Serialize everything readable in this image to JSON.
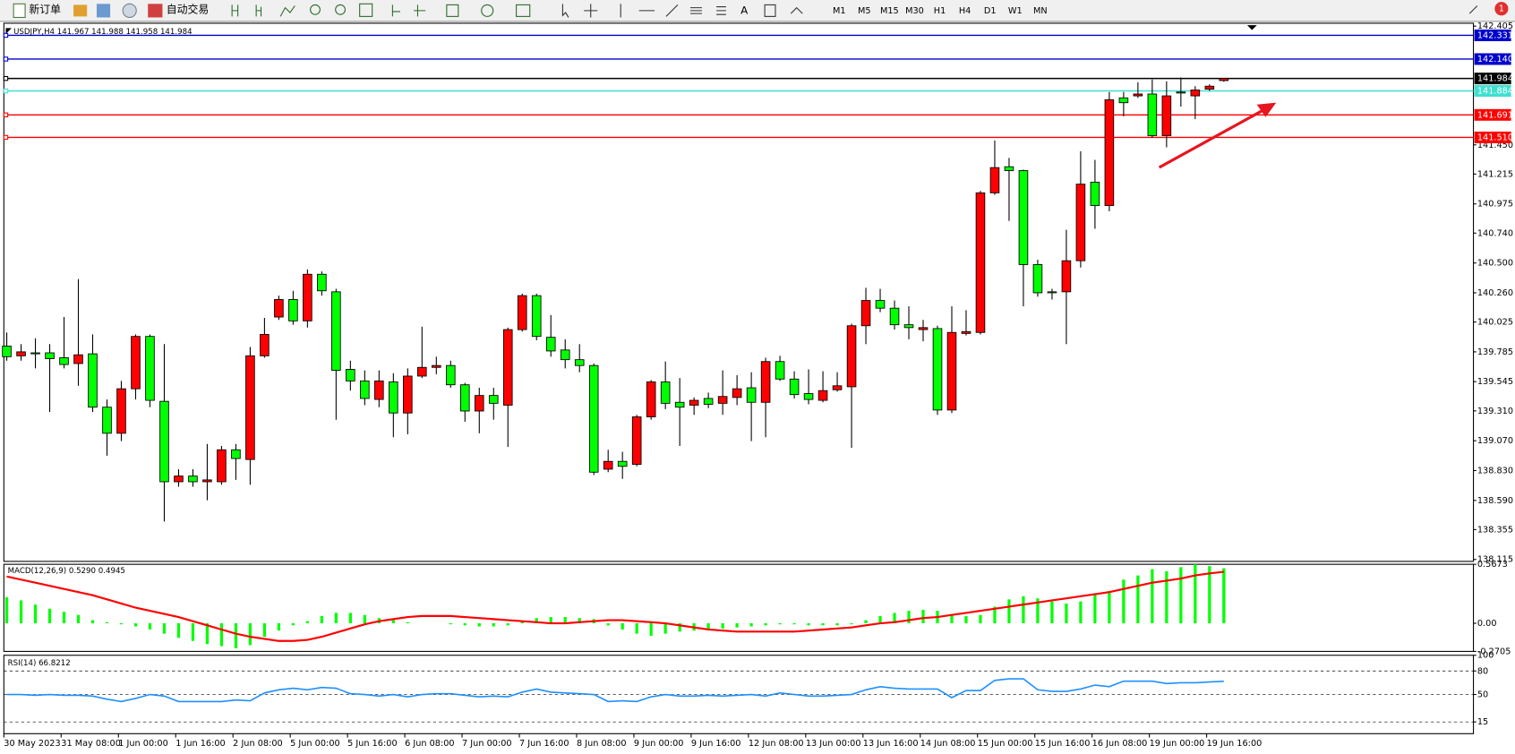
{
  "toolbar": {
    "new_order": "新订单",
    "auto_trading": "自动交易",
    "timeframes": [
      "M1",
      "M5",
      "M15",
      "M30",
      "H1",
      "H4",
      "D1",
      "W1",
      "MN"
    ],
    "notification_count": 1
  },
  "chart_data": [
    {
      "type": "candlestick",
      "header": "USDJPY,H4  141.967 141.988 141.958 141.984",
      "up_color": "#ff0000",
      "down_color": "#00ff00",
      "categories": [
        "30 May 2023",
        null,
        null,
        null,
        "31 May 08:00",
        null,
        null,
        null,
        "1 Jun 00:00",
        null,
        null,
        null,
        "1 Jun 16:00",
        null,
        null,
        null,
        "2 Jun 08:00",
        null,
        null,
        null,
        "5 Jun 00:00",
        null,
        null,
        null,
        "5 Jun 16:00",
        null,
        null,
        null,
        "6 Jun 08:00",
        null,
        null,
        null,
        "7 Jun 00:00",
        null,
        null,
        null,
        "7 Jun 16:00",
        null,
        null,
        null,
        "8 Jun 08:00",
        null,
        null,
        null,
        "9 Jun 00:00",
        null,
        null,
        null,
        "9 Jun 16:00",
        null,
        null,
        null,
        "12 Jun 08:00",
        null,
        null,
        null,
        "13 Jun 00:00",
        null,
        null,
        null,
        "13 Jun 16:00",
        null,
        null,
        null,
        "14 Jun 08:00",
        null,
        null,
        null,
        "15 Jun 00:00",
        null,
        null,
        null,
        "15 Jun 16:00",
        null,
        null,
        null,
        "16 Jun 08:00",
        null,
        null,
        null,
        "19 Jun 00:00",
        null,
        null,
        null,
        "19 Jun 16:00",
        null
      ],
      "open": [
        139.831,
        139.753,
        139.777,
        139.777,
        139.738,
        139.691,
        139.769,
        139.34,
        139.13,
        139.488,
        139.909,
        139.387,
        138.74,
        138.786,
        138.74,
        138.74,
        138.997,
        138.919,
        139.753,
        140.065,
        140.206,
        140.034,
        140.409,
        140.268,
        139.644,
        139.551,
        139.402,
        139.543,
        139.293,
        139.59,
        139.66,
        139.675,
        139.52,
        139.309,
        139.434,
        139.356,
        139.964,
        140.237,
        139.902,
        139.8,
        139.722,
        139.675,
        138.841,
        138.904,
        138.88,
        139.262,
        139.543,
        139.379,
        139.356,
        139.41,
        139.371,
        139.418,
        139.496,
        139.379,
        139.707,
        139.566,
        139.449,
        139.395,
        139.48,
        139.504,
        139.995,
        140.198,
        140.136,
        140.003,
        139.964,
        139.972,
        139.317,
        139.933,
        139.941,
        141.064,
        141.274,
        141.243,
        140.487,
        140.268,
        140.268,
        140.518,
        141.15,
        140.962,
        141.828,
        141.844,
        141.859,
        141.524,
        141.875,
        141.844,
        141.898,
        141.967
      ],
      "high": [
        139.941,
        139.847,
        139.894,
        139.847,
        140.065,
        140.37,
        139.925,
        139.402,
        139.551,
        139.925,
        139.925,
        139.847,
        138.841,
        138.841,
        139.044,
        139.028,
        139.044,
        139.824,
        140.058,
        140.237,
        140.276,
        140.448,
        140.432,
        140.292,
        139.714,
        139.636,
        139.636,
        139.613,
        139.652,
        139.987,
        139.746,
        139.714,
        139.535,
        139.496,
        139.496,
        139.98,
        140.253,
        140.253,
        140.081,
        139.886,
        139.847,
        139.691,
        138.997,
        138.981,
        139.278,
        139.558,
        139.707,
        139.574,
        139.418,
        139.457,
        139.636,
        139.597,
        139.621,
        139.738,
        139.753,
        139.629,
        139.644,
        139.629,
        139.621,
        140.011,
        140.3,
        140.292,
        140.198,
        140.151,
        140.042,
        139.995,
        140.151,
        140.12,
        141.08,
        141.485,
        141.345,
        141.251,
        140.526,
        140.292,
        140.767,
        141.399,
        141.329,
        141.875,
        141.875,
        141.953,
        141.976,
        141.961,
        141.992,
        141.922,
        141.937,
        141.988
      ],
      "low": [
        139.714,
        139.714,
        139.652,
        139.301,
        139.652,
        139.512,
        139.301,
        138.95,
        139.067,
        139.402,
        139.34,
        138.42,
        138.7,
        138.7,
        138.591,
        138.716,
        138.755,
        138.716,
        139.738,
        140.042,
        140.003,
        139.98,
        140.237,
        139.239,
        139.473,
        139.356,
        139.34,
        139.098,
        139.122,
        139.574,
        139.605,
        139.496,
        139.223,
        139.13,
        139.239,
        139.02,
        139.948,
        139.878,
        139.746,
        139.652,
        139.621,
        138.794,
        138.817,
        138.763,
        138.864,
        139.239,
        139.324,
        139.028,
        139.278,
        139.332,
        139.278,
        139.356,
        139.067,
        139.098,
        139.551,
        139.41,
        139.363,
        139.379,
        139.465,
        139.013,
        139.847,
        140.104,
        139.964,
        139.886,
        139.87,
        139.278,
        139.293,
        139.917,
        139.925,
        141.048,
        140.838,
        140.151,
        140.229,
        140.206,
        139.847,
        140.463,
        140.775,
        140.916,
        141.68,
        141.828,
        141.508,
        141.43,
        141.758,
        141.657,
        141.883,
        141.958
      ],
      "close": [
        139.746,
        139.785,
        139.769,
        139.73,
        139.683,
        139.761,
        139.34,
        139.13,
        139.488,
        139.909,
        139.395,
        138.74,
        138.786,
        138.74,
        138.755,
        138.997,
        138.927,
        139.753,
        139.925,
        140.206,
        140.034,
        140.409,
        140.276,
        139.636,
        139.551,
        139.41,
        139.551,
        139.293,
        139.59,
        139.66,
        139.675,
        139.52,
        139.309,
        139.434,
        139.371,
        139.964,
        140.237,
        139.909,
        139.792,
        139.722,
        139.675,
        138.817,
        138.904,
        138.864,
        139.262,
        139.543,
        139.371,
        139.34,
        139.395,
        139.363,
        139.426,
        139.488,
        139.379,
        139.707,
        139.566,
        139.441,
        139.402,
        139.473,
        139.512,
        139.995,
        140.198,
        140.136,
        140.003,
        139.98,
        139.98,
        139.317,
        139.941,
        139.948,
        141.064,
        141.267,
        141.243,
        140.487,
        140.26,
        140.26,
        140.518,
        141.134,
        140.962,
        141.813,
        141.789,
        141.859,
        141.524,
        141.844,
        141.867,
        141.891,
        141.922,
        141.984
      ],
      "ylim": [
        138.115,
        142.405
      ],
      "yticks": [
        142.405,
        {
          "value": 141.45,
          "label": "141.450"
        },
        141.215,
        140.975,
        {
          "value": 140.74,
          "label": "140.740"
        },
        {
          "value": 140.5,
          "label": "140.500"
        },
        {
          "value": 140.26,
          "label": "140.260"
        },
        140.025,
        139.785,
        139.545,
        {
          "value": 139.31,
          "label": "139.310"
        },
        {
          "value": 139.07,
          "label": "139.070"
        },
        {
          "value": 138.83,
          "label": "138.830"
        },
        {
          "value": 138.59,
          "label": "138.590"
        },
        138.355,
        138.115
      ],
      "hlines": [
        {
          "value": 142.331,
          "color": "#0000cd"
        },
        {
          "value": 142.14,
          "label": "142.140",
          "color": "#0000cd"
        },
        {
          "value": 141.984,
          "color": "#000000"
        },
        {
          "value": 141.884,
          "color": "#40e0d0"
        },
        {
          "value": 141.691,
          "color": "#ff0000"
        },
        {
          "value": 141.51,
          "label": "141.510",
          "color": "#ff0000"
        }
      ]
    },
    {
      "type": "macd",
      "header": "MACD(12,26,9) 0.5290 0.4945",
      "histogram": {
        "color": "#00ff00",
        "values": [
          0.25,
          0.22,
          0.18,
          0.14,
          0.11,
          0.08,
          0.03,
          0.01,
          -0.01,
          -0.03,
          -0.06,
          -0.1,
          -0.14,
          -0.17,
          -0.2,
          -0.22,
          -0.24,
          -0.21,
          -0.13,
          -0.07,
          -0.02,
          0.02,
          0.07,
          0.1,
          0.1,
          0.08,
          0.05,
          0.03,
          0.01,
          0,
          0,
          -0.01,
          -0.02,
          -0.03,
          -0.03,
          -0.02,
          0.02,
          0.05,
          0.06,
          0.06,
          0.05,
          0.04,
          -0.02,
          -0.06,
          -0.1,
          -0.12,
          -0.1,
          -0.08,
          -0.07,
          -0.06,
          -0.05,
          -0.04,
          -0.03,
          -0.02,
          -0.01,
          -0.01,
          -0.02,
          -0.02,
          -0.02,
          -0.01,
          0.03,
          0.07,
          0.1,
          0.12,
          0.13,
          0.12,
          0.08,
          0.07,
          0.08,
          0.16,
          0.23,
          0.26,
          0.24,
          0.21,
          0.19,
          0.21,
          0.28,
          0.31,
          0.42,
          0.46,
          0.52,
          0.5,
          0.54,
          0.5673,
          0.55,
          0.529
        ]
      },
      "signal": {
        "color": "#ff0000",
        "values": [
          0.45,
          0.42,
          0.39,
          0.36,
          0.33,
          0.3,
          0.27,
          0.23,
          0.19,
          0.15,
          0.12,
          0.09,
          0.06,
          0.02,
          -0.02,
          -0.06,
          -0.1,
          -0.13,
          -0.15,
          -0.17,
          -0.17,
          -0.16,
          -0.13,
          -0.09,
          -0.05,
          -0.01,
          0.02,
          0.04,
          0.06,
          0.07,
          0.07,
          0.07,
          0.06,
          0.05,
          0.04,
          0.03,
          0.02,
          0.01,
          0,
          0,
          0.01,
          0.02,
          0.03,
          0.03,
          0.02,
          0.01,
          0,
          -0.02,
          -0.04,
          -0.06,
          -0.07,
          -0.08,
          -0.08,
          -0.08,
          -0.08,
          -0.08,
          -0.07,
          -0.06,
          -0.05,
          -0.04,
          -0.02,
          0,
          0.01,
          0.03,
          0.05,
          0.06,
          0.08,
          0.1,
          0.12,
          0.14,
          0.16,
          0.18,
          0.2,
          0.22,
          0.24,
          0.26,
          0.28,
          0.3,
          0.33,
          0.36,
          0.39,
          0.41,
          0.43,
          0.46,
          0.48,
          0.4945
        ]
      },
      "ylim": [
        -0.2705,
        0.5673
      ],
      "yticks": [
        -0.2705,
        {
          "value": 0,
          "label": "0.00"
        },
        0.5673
      ]
    },
    {
      "type": "line",
      "header": "RSI(14) 66.8212",
      "color": "#1e90ff",
      "values": [
        50,
        50,
        49,
        50,
        49,
        49,
        48,
        44,
        41,
        45,
        50,
        48,
        41,
        41,
        41,
        41,
        43,
        42,
        52,
        56,
        58,
        56,
        59,
        58,
        51,
        50,
        48,
        50,
        47,
        50,
        51,
        51,
        49,
        47,
        48,
        47,
        53,
        57,
        53,
        52,
        51,
        50,
        41,
        42,
        41,
        47,
        50,
        48,
        48,
        49,
        48,
        49,
        50,
        48,
        52,
        50,
        48,
        48,
        49,
        50,
        56,
        60,
        58,
        57,
        57,
        57,
        46,
        55,
        55,
        68,
        70,
        70,
        56,
        54,
        54,
        57,
        62,
        60,
        67,
        67,
        67,
        64,
        65,
        65,
        66,
        66.8212
      ],
      "ylim": [
        0,
        100
      ],
      "yticks": [
        15,
        50,
        80,
        100
      ]
    }
  ]
}
